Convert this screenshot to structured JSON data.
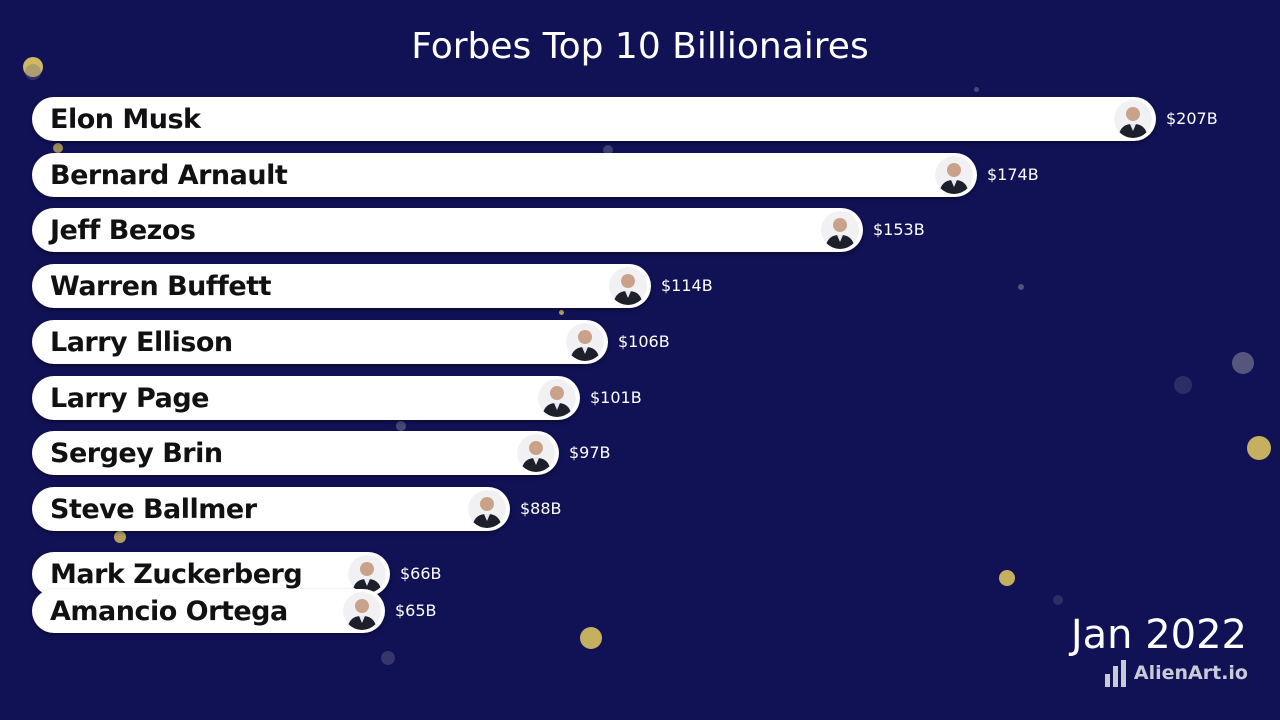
{
  "chart_data": {
    "type": "bar",
    "orientation": "horizontal",
    "title": "Forbes Top 10 Billionaires",
    "categories": [
      "Elon Musk",
      "Bernard Arnault",
      "Jeff Bezos",
      "Warren Buffett",
      "Larry Ellison",
      "Larry Page",
      "Sergey Brin",
      "Steve Ballmer",
      "Mark Zuckerberg",
      "Amancio Ortega"
    ],
    "values": [
      207,
      174,
      153,
      114,
      106,
      101,
      97,
      88,
      66,
      65
    ],
    "value_labels": [
      "$207B",
      "$174B",
      "$153B",
      "$114B",
      "$106B",
      "$101B",
      "$97B",
      "$88B",
      "$66B",
      "$65B"
    ],
    "unit": "B",
    "grid": false,
    "legend": "none"
  },
  "period_label": "Jan 2022",
  "brand": {
    "name": "AlienArt.io",
    "icon": "bar-chart-logo-icon"
  },
  "colors": {
    "background": "#111156",
    "bar": "#ffffff",
    "bar_text": "#111111",
    "value_text": "#ffffff",
    "dot_gold": "#d9c262",
    "dot_gray": "#6e6e8a"
  },
  "avatar_icon": "person-photo-icon"
}
